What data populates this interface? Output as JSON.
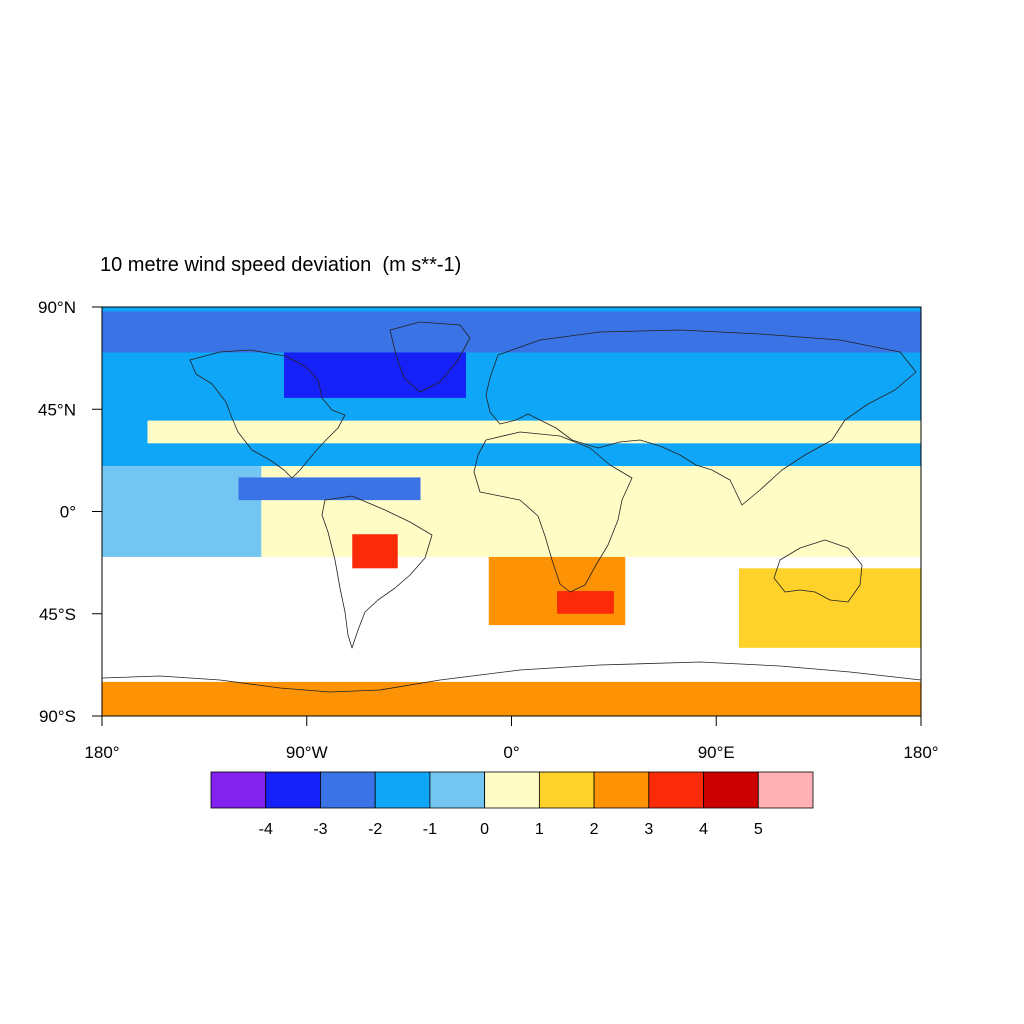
{
  "title": "10 metre wind speed deviation",
  "units": "(m s**-1)",
  "chart_data": {
    "type": "heatmap",
    "title": "10 metre wind speed deviation",
    "units": "(m s**-1)",
    "projection": "cylindrical equidistant",
    "xlim": [
      -180,
      180
    ],
    "ylim": [
      -90,
      90
    ],
    "x_ticks": [
      {
        "value": -180,
        "label": "180°"
      },
      {
        "value": -90,
        "label": "90°W"
      },
      {
        "value": 0,
        "label": "0°"
      },
      {
        "value": 90,
        "label": "90°E"
      },
      {
        "value": 180,
        "label": "180°"
      }
    ],
    "y_ticks": [
      {
        "value": 90,
        "label": "90°N"
      },
      {
        "value": 45,
        "label": "45°N"
      },
      {
        "value": 0,
        "label": "0°"
      },
      {
        "value": -45,
        "label": "45°S"
      },
      {
        "value": -90,
        "label": "90°S"
      }
    ],
    "colorbar": {
      "position": "bottom",
      "levels": [
        "-4",
        "-3",
        "-2",
        "-1",
        "0",
        "1",
        "2",
        "3",
        "4",
        "5"
      ],
      "colors": [
        "#8321ef",
        "#1621f7",
        "#3a73e6",
        "#10a6f7",
        "#73c6f1",
        "#fffcc6",
        "#fed22a",
        "#fe9205",
        "#fb2b0a",
        "#cc0000",
        "#ffb1b4"
      ]
    },
    "regions": [
      {
        "lon": [
          -180,
          180
        ],
        "lat": [
          -20,
          25
        ],
        "value": 0.5
      },
      {
        "lon": [
          -180,
          180
        ],
        "lat": [
          20,
          90
        ],
        "value": -1.5
      },
      {
        "lon": [
          -180,
          180
        ],
        "lat": [
          70,
          88
        ],
        "value": -2.5
      },
      {
        "lon": [
          -160,
          180
        ],
        "lat": [
          30,
          40
        ],
        "value": 0.5
      },
      {
        "lon": [
          -10,
          50
        ],
        "lat": [
          -50,
          -20
        ],
        "value": 2.5
      },
      {
        "lon": [
          20,
          45
        ],
        "lat": [
          -45,
          -35
        ],
        "value": 3.5
      },
      {
        "lon": [
          -70,
          -50
        ],
        "lat": [
          -25,
          -10
        ],
        "value": 3.5
      },
      {
        "lon": [
          -180,
          180
        ],
        "lat": [
          -90,
          -75
        ],
        "value": 2.5
      },
      {
        "lon": [
          100,
          180
        ],
        "lat": [
          -60,
          -25
        ],
        "value": 1.5
      },
      {
        "lon": [
          -180,
          -110
        ],
        "lat": [
          -20,
          20
        ],
        "value": -0.5
      },
      {
        "lon": [
          -120,
          -40
        ],
        "lat": [
          5,
          15
        ],
        "value": -2.5
      },
      {
        "lon": [
          -100,
          -20
        ],
        "lat": [
          50,
          70
        ],
        "value": -3.5
      }
    ]
  }
}
